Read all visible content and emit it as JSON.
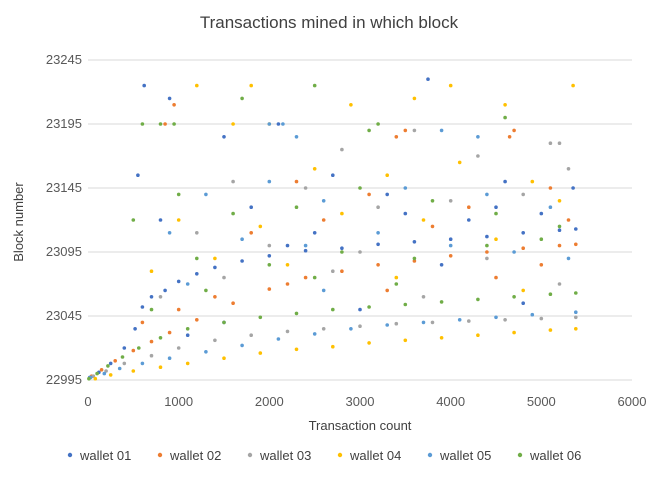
{
  "chart_data": {
    "type": "scatter",
    "title": "Transactions mined in which block",
    "xlabel": "Transaction count",
    "ylabel": "Block number",
    "xlim": [
      0,
      6000
    ],
    "ylim": [
      22995,
      23245
    ],
    "x_ticks": [
      0,
      1000,
      2000,
      3000,
      4000,
      5000,
      6000
    ],
    "y_ticks": [
      22995,
      23045,
      23095,
      23145,
      23195,
      23245
    ],
    "x_tick_labels": [
      "0",
      "1000",
      "2000",
      "3000",
      "4000",
      "5000",
      "6000"
    ],
    "y_tick_labels": [
      "22995",
      "23045",
      "23095",
      "23145",
      "23195",
      "23245"
    ],
    "grid": "horizontal",
    "legend_position": "bottom",
    "series": [
      {
        "name": "wallet 01",
        "color": "#4472C4",
        "points": [
          [
            20,
            22997
          ],
          [
            120,
            23001
          ],
          [
            250,
            23008
          ],
          [
            400,
            23020
          ],
          [
            520,
            23035
          ],
          [
            600,
            23052
          ],
          [
            700,
            23060
          ],
          [
            850,
            23065
          ],
          [
            1000,
            23072
          ],
          [
            1200,
            23078
          ],
          [
            1400,
            23083
          ],
          [
            1700,
            23088
          ],
          [
            2000,
            23092
          ],
          [
            2400,
            23096
          ],
          [
            2800,
            23098
          ],
          [
            3200,
            23101
          ],
          [
            3600,
            23103
          ],
          [
            4000,
            23105
          ],
          [
            4400,
            23107
          ],
          [
            4800,
            23110
          ],
          [
            5200,
            23112
          ],
          [
            5380,
            23113
          ],
          [
            550,
            23155
          ],
          [
            620,
            23225
          ],
          [
            900,
            23215
          ],
          [
            1500,
            23185
          ],
          [
            2100,
            23195
          ],
          [
            2700,
            23155
          ],
          [
            3300,
            23140
          ],
          [
            3750,
            23230
          ],
          [
            4200,
            23120
          ],
          [
            4600,
            23150
          ],
          [
            5000,
            23125
          ],
          [
            5350,
            23145
          ],
          [
            800,
            23120
          ],
          [
            1800,
            23130
          ],
          [
            2500,
            23110
          ],
          [
            3500,
            23125
          ],
          [
            4500,
            23130
          ],
          [
            3000,
            23050
          ],
          [
            1500,
            23040
          ],
          [
            4800,
            23055
          ],
          [
            2200,
            23100
          ],
          [
            3900,
            23085
          ],
          [
            1100,
            23030
          ]
        ]
      },
      {
        "name": "wallet 02",
        "color": "#ED7D31",
        "points": [
          [
            40,
            22998
          ],
          [
            150,
            23003
          ],
          [
            300,
            23010
          ],
          [
            500,
            23018
          ],
          [
            700,
            23025
          ],
          [
            900,
            23032
          ],
          [
            1200,
            23042
          ],
          [
            1600,
            23055
          ],
          [
            2000,
            23066
          ],
          [
            2400,
            23075
          ],
          [
            2800,
            23080
          ],
          [
            3200,
            23085
          ],
          [
            3600,
            23088
          ],
          [
            4000,
            23092
          ],
          [
            4400,
            23095
          ],
          [
            4800,
            23098
          ],
          [
            5200,
            23100
          ],
          [
            5380,
            23101
          ],
          [
            850,
            23195
          ],
          [
            950,
            23210
          ],
          [
            3500,
            23190
          ],
          [
            3400,
            23185
          ],
          [
            4700,
            23190
          ],
          [
            4650,
            23185
          ],
          [
            2300,
            23150
          ],
          [
            3100,
            23140
          ],
          [
            4200,
            23130
          ],
          [
            5100,
            23145
          ],
          [
            1800,
            23110
          ],
          [
            2600,
            23120
          ],
          [
            3800,
            23115
          ],
          [
            5300,
            23120
          ],
          [
            1400,
            23060
          ],
          [
            2200,
            23070
          ],
          [
            3300,
            23065
          ],
          [
            4500,
            23075
          ],
          [
            5000,
            23085
          ],
          [
            600,
            23040
          ],
          [
            1000,
            23050
          ]
        ]
      },
      {
        "name": "wallet 03",
        "color": "#A5A5A5",
        "points": [
          [
            60,
            22998
          ],
          [
            200,
            23002
          ],
          [
            400,
            23008
          ],
          [
            700,
            23014
          ],
          [
            1000,
            23020
          ],
          [
            1400,
            23026
          ],
          [
            1800,
            23030
          ],
          [
            2200,
            23033
          ],
          [
            2600,
            23035
          ],
          [
            3000,
            23037
          ],
          [
            3400,
            23039
          ],
          [
            3800,
            23040
          ],
          [
            4200,
            23041
          ],
          [
            4600,
            23042
          ],
          [
            5000,
            23043
          ],
          [
            5380,
            23044
          ],
          [
            5100,
            23180
          ],
          [
            5200,
            23180
          ],
          [
            2800,
            23175
          ],
          [
            3600,
            23190
          ],
          [
            4300,
            23170
          ],
          [
            1600,
            23150
          ],
          [
            2400,
            23145
          ],
          [
            3200,
            23130
          ],
          [
            4000,
            23135
          ],
          [
            4800,
            23140
          ],
          [
            5300,
            23160
          ],
          [
            1200,
            23110
          ],
          [
            2000,
            23100
          ],
          [
            3000,
            23095
          ],
          [
            4400,
            23090
          ],
          [
            5200,
            23070
          ],
          [
            800,
            23060
          ],
          [
            1500,
            23075
          ],
          [
            2700,
            23080
          ],
          [
            3700,
            23060
          ]
        ]
      },
      {
        "name": "wallet 04",
        "color": "#FFC000",
        "points": [
          [
            80,
            22996
          ],
          [
            250,
            22999
          ],
          [
            500,
            23002
          ],
          [
            800,
            23005
          ],
          [
            1100,
            23008
          ],
          [
            1500,
            23012
          ],
          [
            1900,
            23016
          ],
          [
            2300,
            23019
          ],
          [
            2700,
            23021
          ],
          [
            3100,
            23024
          ],
          [
            3500,
            23026
          ],
          [
            3900,
            23028
          ],
          [
            4300,
            23030
          ],
          [
            4700,
            23032
          ],
          [
            5100,
            23034
          ],
          [
            5380,
            23035
          ],
          [
            1200,
            23225
          ],
          [
            1800,
            23225
          ],
          [
            2000,
            23195
          ],
          [
            2900,
            23210
          ],
          [
            3600,
            23215
          ],
          [
            4000,
            23225
          ],
          [
            4600,
            23210
          ],
          [
            5350,
            23225
          ],
          [
            1600,
            23195
          ],
          [
            2500,
            23160
          ],
          [
            3300,
            23155
          ],
          [
            4100,
            23165
          ],
          [
            4900,
            23150
          ],
          [
            5200,
            23135
          ],
          [
            1000,
            23120
          ],
          [
            1900,
            23115
          ],
          [
            2800,
            23125
          ],
          [
            3700,
            23120
          ],
          [
            4500,
            23105
          ],
          [
            700,
            23080
          ],
          [
            1400,
            23090
          ],
          [
            2200,
            23085
          ],
          [
            3400,
            23075
          ],
          [
            4800,
            23065
          ]
        ]
      },
      {
        "name": "wallet 05",
        "color": "#5B9BD5",
        "points": [
          [
            30,
            22997
          ],
          [
            180,
            23000
          ],
          [
            350,
            23004
          ],
          [
            600,
            23008
          ],
          [
            900,
            23012
          ],
          [
            1300,
            23017
          ],
          [
            1700,
            23022
          ],
          [
            2100,
            23027
          ],
          [
            2500,
            23031
          ],
          [
            2900,
            23035
          ],
          [
            3300,
            23038
          ],
          [
            3700,
            23040
          ],
          [
            4100,
            23042
          ],
          [
            4500,
            23044
          ],
          [
            4900,
            23046
          ],
          [
            5380,
            23048
          ],
          [
            2000,
            23195
          ],
          [
            2150,
            23195
          ],
          [
            2300,
            23185
          ],
          [
            3900,
            23190
          ],
          [
            4300,
            23185
          ],
          [
            1300,
            23140
          ],
          [
            2000,
            23150
          ],
          [
            2600,
            23135
          ],
          [
            3500,
            23145
          ],
          [
            4400,
            23140
          ],
          [
            5100,
            23130
          ],
          [
            900,
            23110
          ],
          [
            1700,
            23105
          ],
          [
            2400,
            23100
          ],
          [
            3200,
            23110
          ],
          [
            4000,
            23100
          ],
          [
            4700,
            23095
          ],
          [
            5300,
            23090
          ],
          [
            1100,
            23070
          ],
          [
            2600,
            23065
          ]
        ]
      },
      {
        "name": "wallet 06",
        "color": "#70AD47",
        "points": [
          [
            10,
            22996
          ],
          [
            100,
            23000
          ],
          [
            220,
            23006
          ],
          [
            380,
            23013
          ],
          [
            560,
            23020
          ],
          [
            800,
            23028
          ],
          [
            1100,
            23035
          ],
          [
            1500,
            23040
          ],
          [
            1900,
            23044
          ],
          [
            2300,
            23047
          ],
          [
            2700,
            23050
          ],
          [
            3100,
            23052
          ],
          [
            3500,
            23054
          ],
          [
            3900,
            23056
          ],
          [
            4300,
            23058
          ],
          [
            4700,
            23060
          ],
          [
            5100,
            23062
          ],
          [
            5380,
            23063
          ],
          [
            600,
            23195
          ],
          [
            800,
            23195
          ],
          [
            950,
            23195
          ],
          [
            3100,
            23190
          ],
          [
            3200,
            23195
          ],
          [
            1700,
            23215
          ],
          [
            2500,
            23225
          ],
          [
            4600,
            23200
          ],
          [
            500,
            23120
          ],
          [
            1000,
            23140
          ],
          [
            1600,
            23125
          ],
          [
            2300,
            23130
          ],
          [
            3000,
            23145
          ],
          [
            3800,
            23135
          ],
          [
            4500,
            23125
          ],
          [
            5200,
            23115
          ],
          [
            1200,
            23090
          ],
          [
            2000,
            23085
          ],
          [
            2800,
            23095
          ],
          [
            3600,
            23090
          ],
          [
            4400,
            23100
          ],
          [
            5000,
            23105
          ],
          [
            700,
            23050
          ],
          [
            1300,
            23065
          ],
          [
            2500,
            23075
          ],
          [
            3400,
            23070
          ]
        ]
      }
    ]
  }
}
